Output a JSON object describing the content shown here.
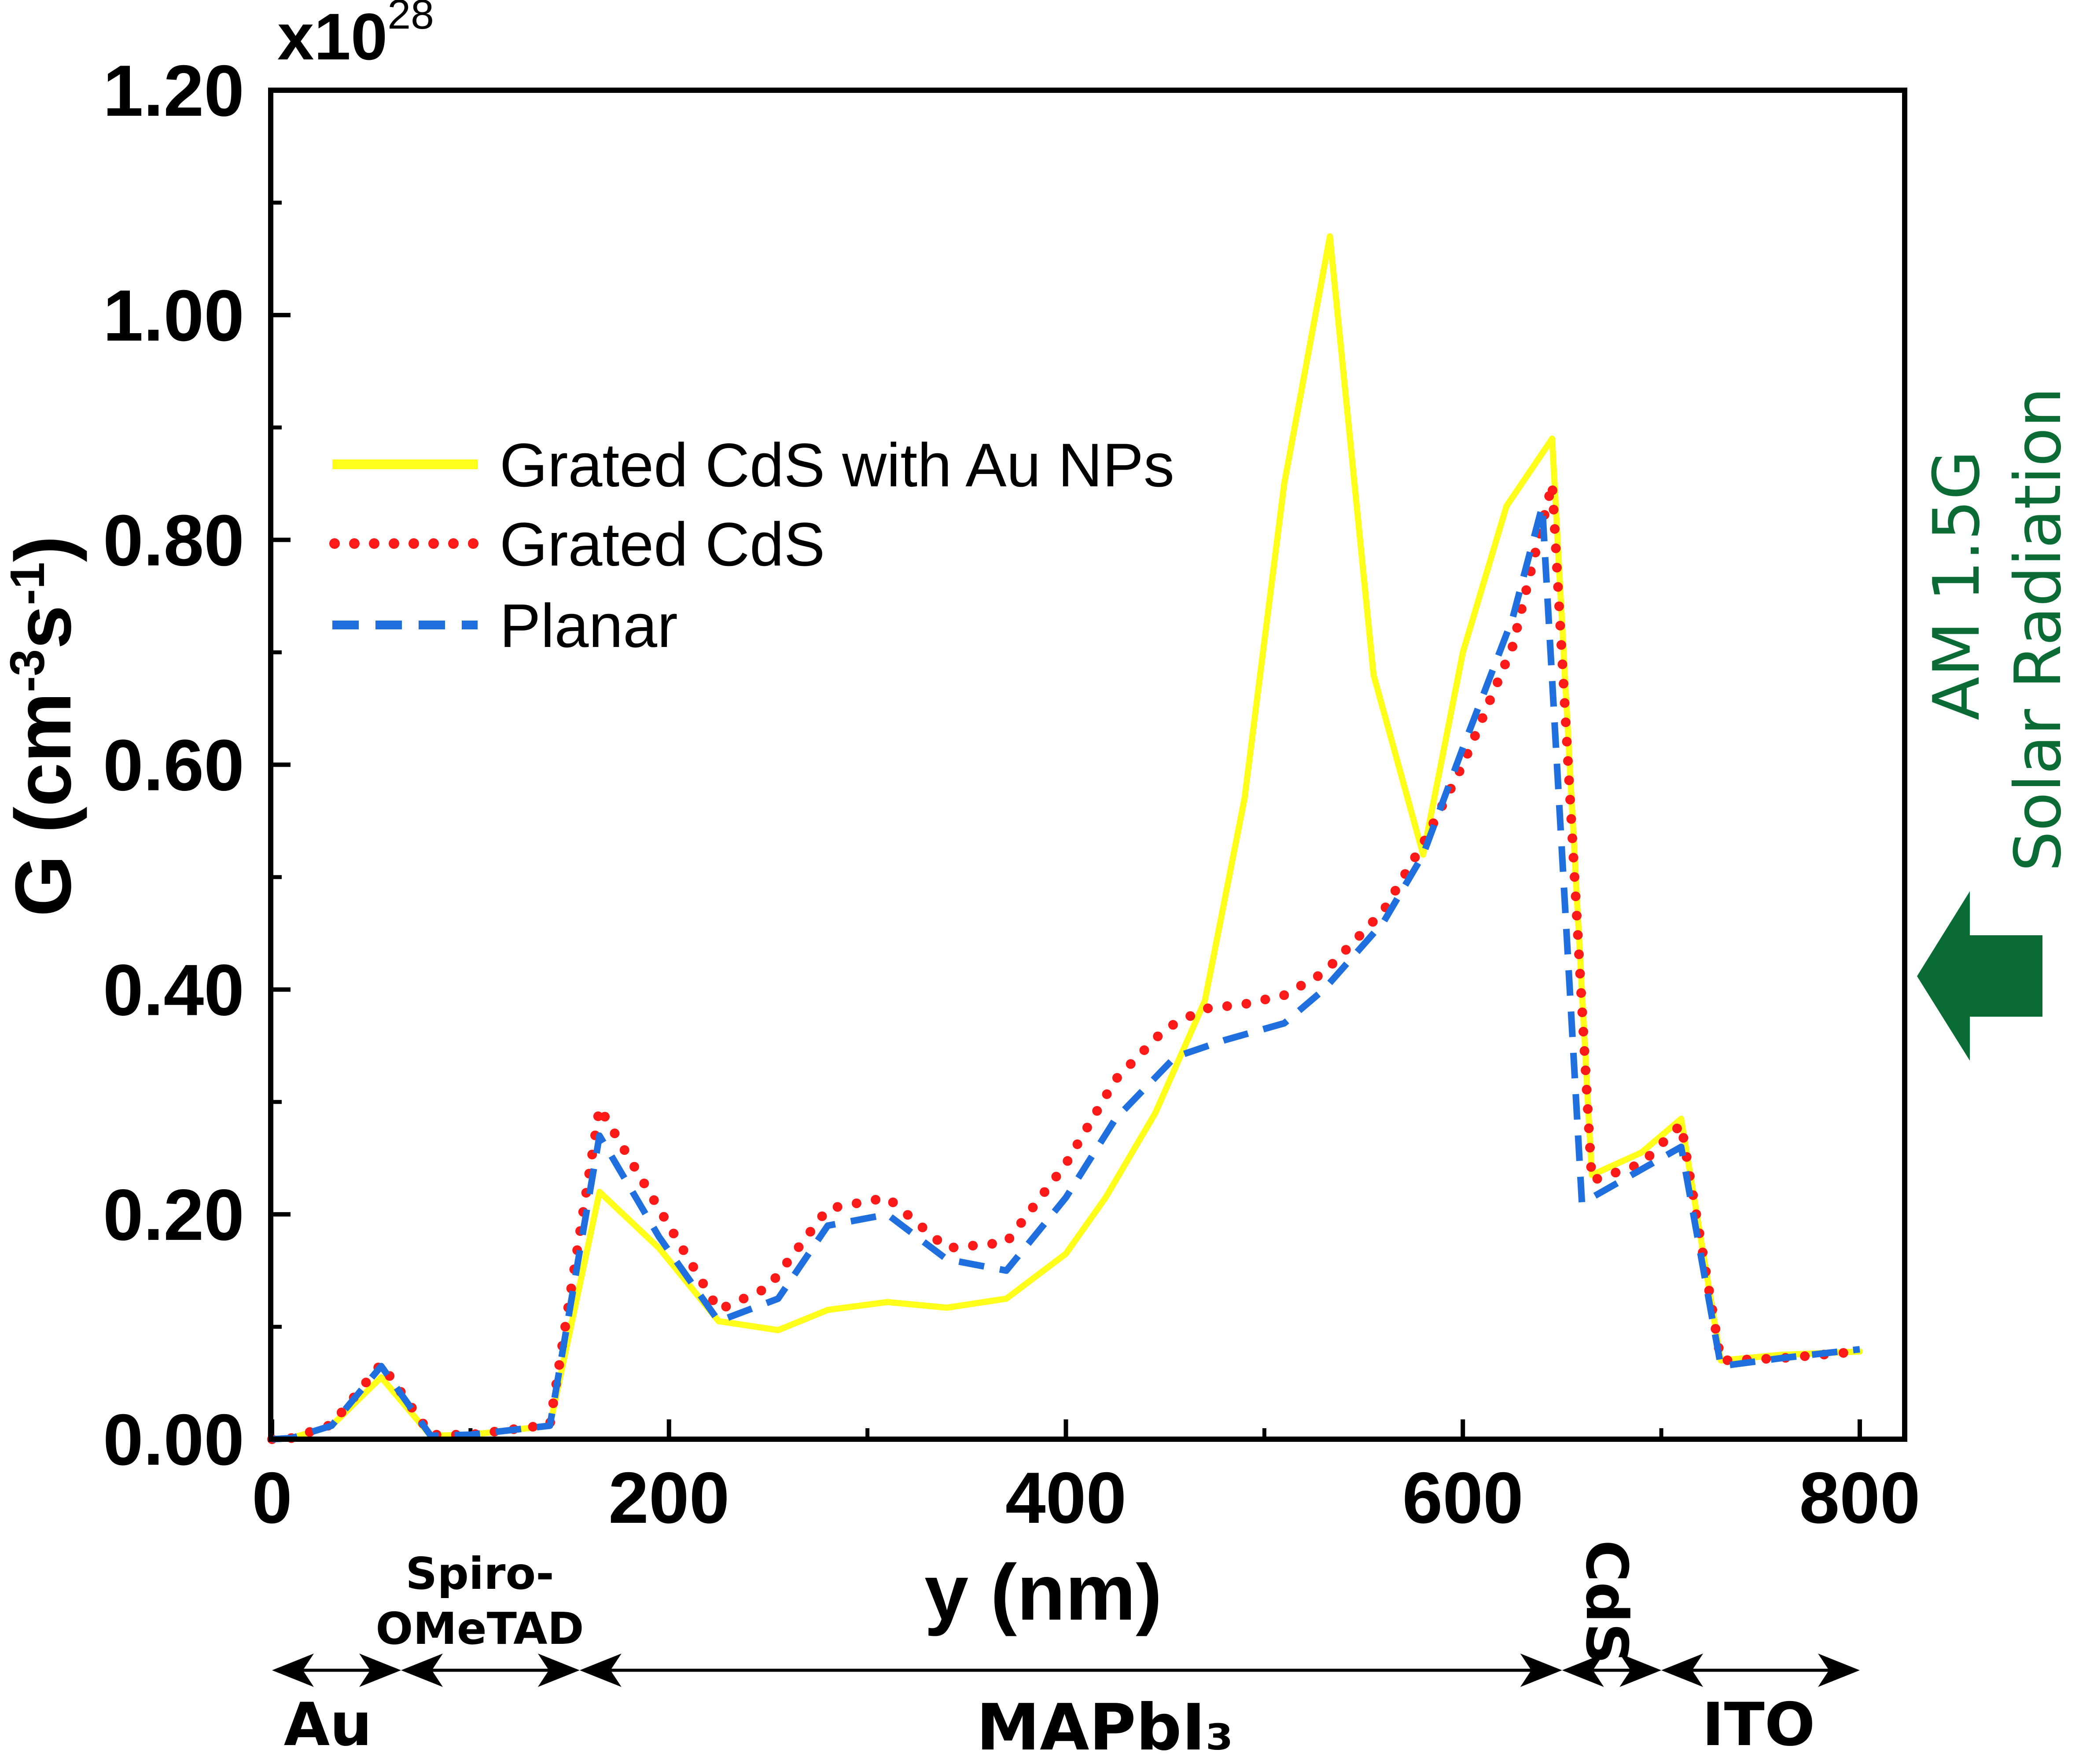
{
  "chart_data": {
    "type": "line",
    "title": "",
    "xlabel": "y (nm)",
    "ylabel": "G (cm-3s-1)",
    "ylabel_parts": {
      "main": "G (cm",
      "sup1": "-3",
      "mid": "s",
      "sup2": "-1",
      "end": ")"
    },
    "y_multiplier": {
      "base": "x10",
      "exp": "28"
    },
    "xlim": [
      0,
      825
    ],
    "ylim": [
      0,
      1.2
    ],
    "x_ticks": [
      0,
      200,
      400,
      600,
      800
    ],
    "x_tick_labels": [
      "0",
      "200",
      "400",
      "600",
      "800"
    ],
    "y_ticks": [
      0,
      0.2,
      0.4,
      0.6,
      0.8,
      1.0,
      1.2
    ],
    "y_tick_labels": [
      "0.00",
      "0.20",
      "0.40",
      "0.60",
      "0.80",
      "1.00",
      "1.20"
    ],
    "legend_position": "upper-left",
    "series": [
      {
        "name": "Grated CdS with Au NPs",
        "color": "#ffff1a",
        "style": "solid",
        "x": [
          0,
          10,
          30,
          55,
          80,
          100,
          140,
          165,
          195,
          225,
          255,
          280,
          310,
          340,
          370,
          400,
          420,
          445,
          470,
          490,
          510,
          533,
          555,
          580,
          600,
          622,
          645,
          665,
          690,
          710,
          730,
          760,
          800
        ],
        "y": [
          0,
          0.001,
          0.012,
          0.055,
          0.003,
          0.004,
          0.012,
          0.22,
          0.17,
          0.105,
          0.097,
          0.115,
          0.122,
          0.117,
          0.125,
          0.165,
          0.215,
          0.29,
          0.39,
          0.57,
          0.85,
          1.07,
          0.68,
          0.52,
          0.7,
          0.83,
          0.89,
          0.235,
          0.255,
          0.285,
          0.07,
          0.075,
          0.078
        ]
      },
      {
        "name": "Grated CdS",
        "color": "#ff1a1a",
        "style": "dotted",
        "x": [
          0,
          10,
          30,
          55,
          80,
          100,
          140,
          165,
          195,
          225,
          250,
          280,
          310,
          340,
          370,
          400,
          425,
          450,
          470,
          490,
          510,
          530,
          560,
          580,
          600,
          625,
          645,
          665,
          690,
          710,
          730,
          760,
          800
        ],
        "y": [
          0,
          0.001,
          0.013,
          0.067,
          0.004,
          0.004,
          0.013,
          0.295,
          0.205,
          0.115,
          0.135,
          0.205,
          0.215,
          0.17,
          0.175,
          0.245,
          0.32,
          0.365,
          0.383,
          0.387,
          0.395,
          0.415,
          0.47,
          0.53,
          0.6,
          0.705,
          0.85,
          0.23,
          0.245,
          0.28,
          0.07,
          0.072,
          0.078
        ]
      },
      {
        "name": "Planar",
        "color": "#1f6fdf",
        "style": "dashed",
        "x": [
          0,
          10,
          30,
          55,
          80,
          100,
          140,
          165,
          195,
          225,
          255,
          280,
          310,
          340,
          370,
          400,
          425,
          455,
          480,
          510,
          530,
          560,
          580,
          600,
          625,
          640,
          660,
          690,
          710,
          730,
          760,
          800
        ],
        "y": [
          0,
          0.001,
          0.012,
          0.065,
          0.003,
          0.004,
          0.012,
          0.27,
          0.18,
          0.105,
          0.125,
          0.19,
          0.2,
          0.16,
          0.15,
          0.215,
          0.285,
          0.34,
          0.355,
          0.37,
          0.4,
          0.46,
          0.52,
          0.615,
          0.73,
          0.83,
          0.21,
          0.24,
          0.26,
          0.065,
          0.072,
          0.08
        ]
      }
    ],
    "layers": [
      {
        "name": "Au",
        "from": 0,
        "to": 65
      },
      {
        "name": "Spiro-OMeTAD",
        "line1": "Spiro-",
        "line2": "OMeTAD",
        "from": 65,
        "to": 155
      },
      {
        "name": "MAPbI3",
        "label": "MAPbI₃",
        "from": 155,
        "to": 650
      },
      {
        "name": "CdS",
        "from": 650,
        "to": 700
      },
      {
        "name": "ITO",
        "from": 700,
        "to": 800
      }
    ],
    "side_annotation": {
      "line1": "AM 1.5G",
      "line2": "Solar Radiation",
      "color": "#0b6b35"
    }
  }
}
